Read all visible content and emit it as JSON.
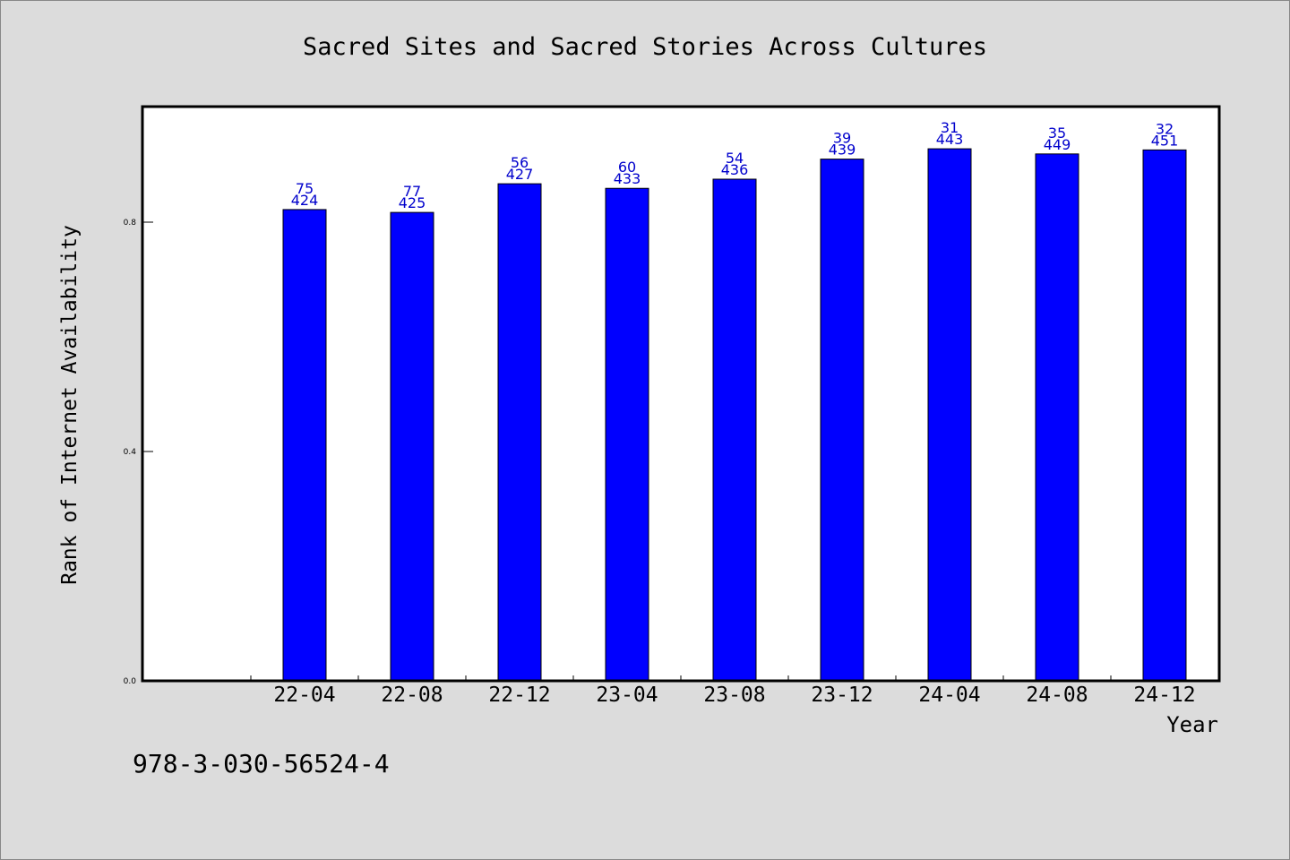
{
  "chart_data": {
    "type": "bar",
    "title": "Sacred Sites and Sacred Stories Across Cultures",
    "xlabel": "Year",
    "ylabel": "Rank of Internet Availability",
    "footer_text": "978-3-030-56524-4",
    "categories": [
      "22-04",
      "22-08",
      "22-12",
      "23-04",
      "23-08",
      "23-12",
      "24-04",
      "24-08",
      "24-12"
    ],
    "values": [
      0.822,
      0.817,
      0.867,
      0.859,
      0.875,
      0.91,
      0.928,
      0.919,
      0.926
    ],
    "label_top": [
      "75",
      "77",
      "56",
      "60",
      "54",
      "39",
      "31",
      "35",
      "32"
    ],
    "label_bottom": [
      "424",
      "425",
      "427",
      "433",
      "436",
      "439",
      "443",
      "449",
      "451"
    ],
    "ylim": [
      0,
      1.0
    ],
    "yticks": [
      "0.0",
      "0.4",
      "0.8"
    ],
    "ytick_values": [
      0.0,
      0.4,
      0.8
    ],
    "grid": false,
    "colors": {
      "bar": "#0000ff",
      "label": "#0000cc",
      "background": "#dcdcdc",
      "plot_background": "#ffffff"
    }
  }
}
